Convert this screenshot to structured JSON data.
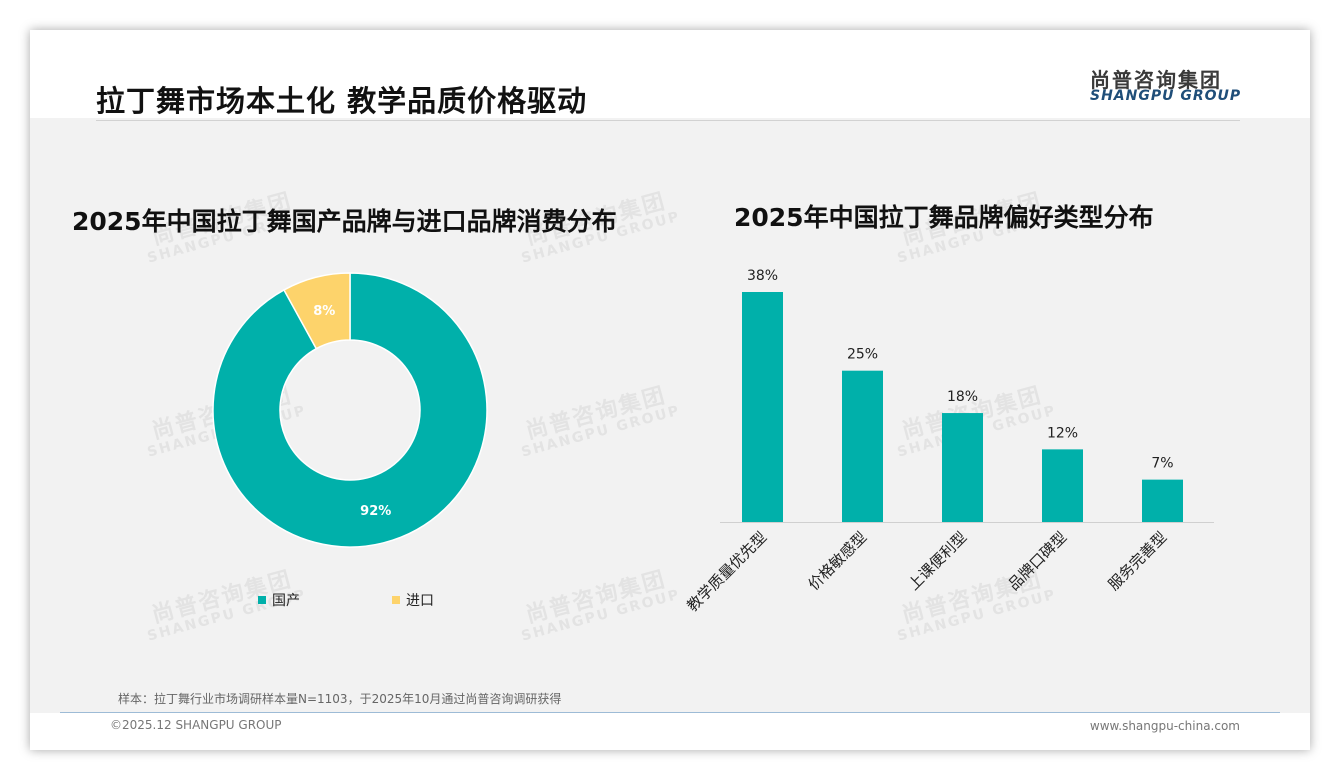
{
  "page": {
    "title": "拉丁舞市场本土化 教学品质价格驱动",
    "brand_cn": "尚普咨询集团",
    "brand_en": "SHANGPU GROUP",
    "watermark_cn": "尚普咨询集团",
    "watermark_en": "SHANGPU GROUP",
    "footnote": "样本：拉丁舞行业市场调研样本量N=1103，于2025年10月通过尚普咨询调研获得",
    "copyright": "©2025.12 SHANGPU GROUP",
    "website": "www.shangpu-china.com"
  },
  "colors": {
    "teal": "#00b0aa",
    "yellow": "#fdd36b",
    "text": "#111111"
  },
  "chart_data": [
    {
      "type": "pie",
      "donut": true,
      "title": "2025年中国拉丁舞国产品牌与进口品牌消费分布",
      "labels": [
        "国产",
        "进口"
      ],
      "values": [
        92,
        8
      ],
      "value_labels": [
        "92%",
        "8%"
      ],
      "colors": [
        "#00b0aa",
        "#fdd36b"
      ],
      "legend": "bottom"
    },
    {
      "type": "bar",
      "title": "2025年中国拉丁舞品牌偏好类型分布",
      "categories": [
        "教学质量优先型",
        "价格敏感型",
        "上课便利型",
        "品牌口碑型",
        "服务完善型"
      ],
      "values": [
        38,
        25,
        18,
        12,
        7
      ],
      "value_labels": [
        "38%",
        "25%",
        "18%",
        "12%",
        "7%"
      ],
      "color": "#00b0aa",
      "ylim": [
        0,
        38
      ],
      "grid": false
    }
  ]
}
